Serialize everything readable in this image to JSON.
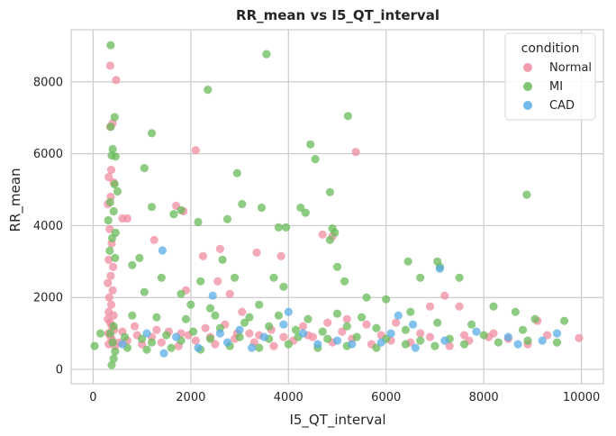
{
  "chart_data": {
    "type": "scatter",
    "title": "RR_mean vs I5_QT_interval",
    "xlabel": "I5_QT_interval",
    "ylabel": "RR_mean",
    "xlim": [
      -450,
      10450
    ],
    "ylim": [
      -400,
      9450
    ],
    "xticks": [
      0,
      2000,
      4000,
      6000,
      8000,
      10000
    ],
    "yticks": [
      0,
      2000,
      4000,
      6000,
      8000
    ],
    "grid": true,
    "legend_title": "condition",
    "legend_position": "top-right",
    "series": [
      {
        "name": "Normal",
        "color": "#f08ca0",
        "points": [
          [
            350,
            8450
          ],
          [
            470,
            8050
          ],
          [
            400,
            6850
          ],
          [
            350,
            6750
          ],
          [
            2100,
            6100
          ],
          [
            5380,
            6050
          ],
          [
            370,
            5550
          ],
          [
            320,
            5350
          ],
          [
            420,
            5200
          ],
          [
            1700,
            4550
          ],
          [
            1850,
            4400
          ],
          [
            700,
            4200
          ],
          [
            600,
            4200
          ],
          [
            360,
            4800
          ],
          [
            300,
            4600
          ],
          [
            4700,
            3750
          ],
          [
            1250,
            3600
          ],
          [
            4900,
            3700
          ],
          [
            2600,
            3350
          ],
          [
            3350,
            3250
          ],
          [
            2250,
            3150
          ],
          [
            3850,
            3150
          ],
          [
            340,
            3900
          ],
          [
            380,
            3500
          ],
          [
            320,
            3050
          ],
          [
            410,
            2850
          ],
          [
            360,
            2600
          ],
          [
            300,
            2400
          ],
          [
            400,
            2200
          ],
          [
            330,
            2000
          ],
          [
            370,
            1800
          ],
          [
            320,
            1600
          ],
          [
            420,
            1500
          ],
          [
            300,
            1400
          ],
          [
            350,
            1300
          ],
          [
            380,
            1200
          ],
          [
            430,
            1100
          ],
          [
            310,
            1000
          ],
          [
            360,
            900
          ],
          [
            400,
            800
          ],
          [
            320,
            700
          ],
          [
            450,
            650
          ],
          [
            2550,
            2450
          ],
          [
            2800,
            2100
          ],
          [
            1900,
            2200
          ],
          [
            3050,
            1600
          ],
          [
            6900,
            1750
          ],
          [
            7200,
            2050
          ],
          [
            7500,
            1750
          ],
          [
            6200,
            1300
          ],
          [
            5200,
            1400
          ],
          [
            5600,
            1250
          ],
          [
            4800,
            1300
          ],
          [
            4300,
            1200
          ],
          [
            3650,
            1100
          ],
          [
            3200,
            1000
          ],
          [
            2700,
            1250
          ],
          [
            2300,
            1150
          ],
          [
            1950,
            950
          ],
          [
            1550,
            1050
          ],
          [
            1200,
            900
          ],
          [
            850,
            1200
          ],
          [
            700,
            800
          ],
          [
            1000,
            700
          ],
          [
            1400,
            750
          ],
          [
            1750,
            650
          ],
          [
            2100,
            800
          ],
          [
            2500,
            700
          ],
          [
            2900,
            850
          ],
          [
            3300,
            750
          ],
          [
            3700,
            650
          ],
          [
            4100,
            800
          ],
          [
            4500,
            900
          ],
          [
            4900,
            750
          ],
          [
            5300,
            850
          ],
          [
            5700,
            700
          ],
          [
            6100,
            800
          ],
          [
            6500,
            750
          ],
          [
            6900,
            900
          ],
          [
            7300,
            650
          ],
          [
            7700,
            800
          ],
          [
            8100,
            900
          ],
          [
            8500,
            850
          ],
          [
            8900,
            700
          ],
          [
            9300,
            950
          ],
          [
            9950,
            870
          ],
          [
            9100,
            1350
          ],
          [
            8200,
            1000
          ],
          [
            7600,
            950
          ],
          [
            6700,
            1000
          ],
          [
            5900,
            950
          ],
          [
            5100,
            1050
          ],
          [
            4400,
            950
          ],
          [
            3900,
            900
          ],
          [
            3400,
            950
          ],
          [
            2950,
            1000
          ],
          [
            2400,
            900
          ],
          [
            1800,
            1000
          ],
          [
            1300,
            1100
          ],
          [
            900,
            950
          ],
          [
            600,
            1050
          ],
          [
            550,
            750
          ]
        ]
      },
      {
        "name": "MI",
        "color": "#6abb5a",
        "points": [
          [
            360,
            9020
          ],
          [
            3550,
            8770
          ],
          [
            2350,
            7780
          ],
          [
            5220,
            7050
          ],
          [
            440,
            7020
          ],
          [
            360,
            6750
          ],
          [
            1200,
            6570
          ],
          [
            4450,
            6260
          ],
          [
            400,
            6130
          ],
          [
            380,
            5950
          ],
          [
            460,
            5920
          ],
          [
            4550,
            5850
          ],
          [
            1050,
            5600
          ],
          [
            2950,
            5460
          ],
          [
            440,
            5150
          ],
          [
            350,
            4650
          ],
          [
            500,
            4950
          ],
          [
            8880,
            4860
          ],
          [
            4850,
            4930
          ],
          [
            1800,
            4430
          ],
          [
            1650,
            4320
          ],
          [
            2150,
            4100
          ],
          [
            3050,
            4600
          ],
          [
            3450,
            4500
          ],
          [
            2750,
            4180
          ],
          [
            1200,
            4520
          ],
          [
            4250,
            4500
          ],
          [
            4350,
            4360
          ],
          [
            3800,
            3950
          ],
          [
            3950,
            3950
          ],
          [
            4900,
            3920
          ],
          [
            4950,
            3800
          ],
          [
            4850,
            3600
          ],
          [
            420,
            4400
          ],
          [
            310,
            4150
          ],
          [
            460,
            3800
          ],
          [
            390,
            3650
          ],
          [
            340,
            3300
          ],
          [
            450,
            3100
          ],
          [
            7050,
            3000
          ],
          [
            6450,
            3000
          ],
          [
            7100,
            2850
          ],
          [
            7500,
            2550
          ],
          [
            6700,
            2550
          ],
          [
            5000,
            2850
          ],
          [
            5150,
            2450
          ],
          [
            3700,
            2550
          ],
          [
            3900,
            2300
          ],
          [
            2900,
            2550
          ],
          [
            2650,
            3050
          ],
          [
            2200,
            2450
          ],
          [
            1800,
            2100
          ],
          [
            1400,
            2550
          ],
          [
            950,
            3100
          ],
          [
            800,
            2900
          ],
          [
            1050,
            2150
          ],
          [
            5600,
            2000
          ],
          [
            6000,
            1950
          ],
          [
            6500,
            1600
          ],
          [
            8200,
            1750
          ],
          [
            8650,
            1600
          ],
          [
            9050,
            1400
          ],
          [
            9650,
            1350
          ],
          [
            8800,
            1100
          ],
          [
            7750,
            1250
          ],
          [
            7050,
            1300
          ],
          [
            6400,
            1100
          ],
          [
            5800,
            1150
          ],
          [
            5200,
            1200
          ],
          [
            4700,
            1050
          ],
          [
            4150,
            1100
          ],
          [
            3600,
            1200
          ],
          [
            3100,
            1300
          ],
          [
            2600,
            1150
          ],
          [
            2050,
            1050
          ],
          [
            1500,
            950
          ],
          [
            1000,
            850
          ],
          [
            650,
            900
          ],
          [
            420,
            1200
          ],
          [
            350,
            1000
          ],
          [
            400,
            750
          ],
          [
            450,
            500
          ],
          [
            420,
            300
          ],
          [
            380,
            120
          ],
          [
            30,
            650
          ],
          [
            150,
            1000
          ],
          [
            700,
            600
          ],
          [
            1100,
            550
          ],
          [
            1600,
            600
          ],
          [
            2200,
            550
          ],
          [
            2800,
            650
          ],
          [
            3400,
            600
          ],
          [
            4000,
            700
          ],
          [
            4600,
            600
          ],
          [
            5200,
            650
          ],
          [
            5800,
            600
          ],
          [
            6400,
            700
          ],
          [
            7000,
            650
          ],
          [
            7600,
            700
          ],
          [
            8300,
            750
          ],
          [
            8900,
            800
          ],
          [
            9500,
            750
          ],
          [
            8000,
            950
          ],
          [
            7300,
            850
          ],
          [
            6700,
            800
          ],
          [
            6000,
            850
          ],
          [
            5400,
            900
          ],
          [
            4800,
            850
          ],
          [
            4200,
            900
          ],
          [
            3600,
            850
          ],
          [
            3000,
            900
          ],
          [
            2400,
            850
          ],
          [
            1800,
            800
          ],
          [
            1200,
            750
          ],
          [
            800,
            1500
          ],
          [
            1300,
            1450
          ],
          [
            1900,
            1400
          ],
          [
            2500,
            1500
          ],
          [
            3200,
            1450
          ],
          [
            3800,
            1500
          ],
          [
            4400,
            1400
          ],
          [
            5000,
            1550
          ],
          [
            5500,
            1450
          ],
          [
            2000,
            1800
          ],
          [
            2400,
            1700
          ],
          [
            3400,
            1800
          ]
        ]
      },
      {
        "name": "CAD",
        "color": "#5aaee6",
        "points": [
          [
            1420,
            3310
          ],
          [
            2450,
            2050
          ],
          [
            7100,
            2800
          ],
          [
            6250,
            1500
          ],
          [
            6550,
            1250
          ],
          [
            4000,
            1600
          ],
          [
            1450,
            450
          ],
          [
            2150,
            600
          ],
          [
            2750,
            750
          ],
          [
            3250,
            600
          ],
          [
            3900,
            1250
          ],
          [
            4600,
            700
          ],
          [
            5300,
            700
          ],
          [
            5900,
            750
          ],
          [
            6600,
            600
          ],
          [
            7200,
            800
          ],
          [
            7850,
            1050
          ],
          [
            8500,
            900
          ],
          [
            9200,
            800
          ],
          [
            9500,
            1000
          ],
          [
            8700,
            700
          ],
          [
            6100,
            1000
          ],
          [
            4300,
            1000
          ],
          [
            3000,
            1100
          ],
          [
            1700,
            900
          ],
          [
            1100,
            1000
          ],
          [
            600,
            700
          ],
          [
            2600,
            1000
          ],
          [
            3500,
            900
          ],
          [
            5000,
            800
          ]
        ]
      }
    ]
  }
}
